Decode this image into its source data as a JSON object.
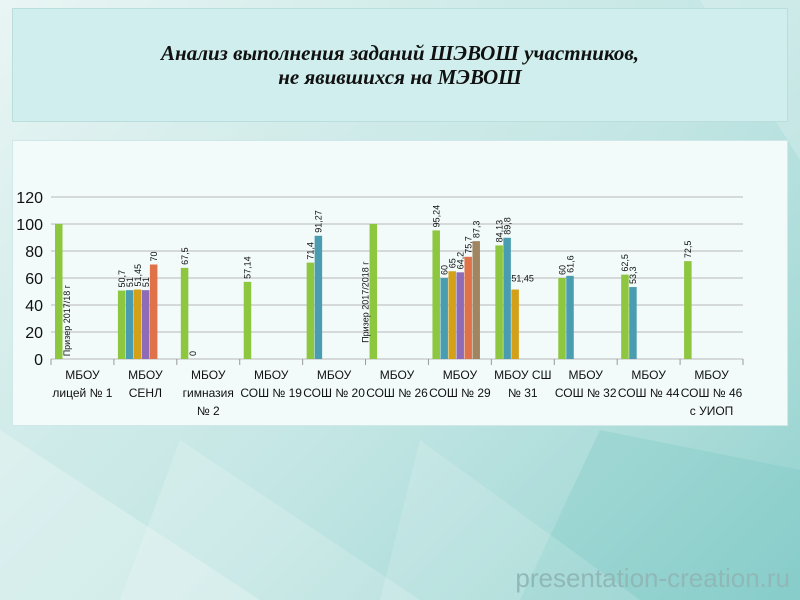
{
  "title": {
    "line1": "Анализ выполнения заданий ШЭВОШ участников,",
    "line2": "не явившихся на МЭВОШ"
  },
  "watermark": "presentation-creation.ru",
  "colors": {
    "s1": "#8dc63f",
    "s2": "#4a9db0",
    "s3": "#d4a017",
    "s4": "#8e6bb6",
    "s5": "#e0724a",
    "s6": "#a08560",
    "grid": "#b8b8b8",
    "axis": "#999999"
  },
  "chart_data": {
    "type": "bar",
    "ylim": [
      0,
      120
    ],
    "yticks": [
      0,
      20,
      40,
      60,
      80,
      100,
      120
    ],
    "grid": true,
    "categories": [
      [
        "МБОУ",
        "лицей № 1"
      ],
      [
        "МБОУ",
        "СЕНЛ"
      ],
      [
        "МБОУ",
        "гимназия",
        "№ 2"
      ],
      [
        "МБОУ",
        "СОШ № 19"
      ],
      [
        "МБОУ",
        "СОШ № 20"
      ],
      [
        "МБОУ",
        "СОШ № 26"
      ],
      [
        "МБОУ",
        "СОШ № 29"
      ],
      [
        "МБОУ СШ",
        "№ 31"
      ],
      [
        "МБОУ",
        "СОШ № 32"
      ],
      [
        "МБОУ",
        "СОШ № 44"
      ],
      [
        "МБОУ",
        "СОШ № 46",
        "с УИОП"
      ]
    ],
    "groups": [
      {
        "bars": [
          {
            "v": 100,
            "label": "",
            "c": "s1"
          }
        ],
        "notes": [
          {
            "text": "Призер 2017/18 г",
            "slot": 1,
            "y": 2
          }
        ]
      },
      {
        "bars": [
          {
            "v": 50.7,
            "label": "50,7",
            "c": "s1"
          },
          {
            "v": 51,
            "label": "51",
            "c": "s2"
          },
          {
            "v": 51.45,
            "label": "51,45",
            "c": "s3"
          },
          {
            "v": 51,
            "label": "51",
            "c": "s4"
          },
          {
            "v": 70,
            "label": "70",
            "c": "s5"
          }
        ],
        "notes": []
      },
      {
        "bars": [
          {
            "v": 67.5,
            "label": "67,5",
            "c": "s1"
          },
          {
            "v": 0,
            "label": "0",
            "c": "s2"
          }
        ],
        "notes": []
      },
      {
        "bars": [
          {
            "v": 57.14,
            "label": "57,14",
            "c": "s1"
          }
        ],
        "notes": []
      },
      {
        "bars": [
          {
            "v": 71.4,
            "label": "71,4",
            "c": "s1"
          },
          {
            "v": 91.27,
            "label": "91,27",
            "c": "s2"
          }
        ],
        "notes": []
      },
      {
        "bars": [
          {
            "v": 100,
            "label": "",
            "c": "s1"
          }
        ],
        "notes": [
          {
            "text": "Призер 2017/2018 г",
            "slot": -1,
            "y": 12
          }
        ]
      },
      {
        "bars": [
          {
            "v": 95.24,
            "label": "95,24",
            "c": "s1"
          },
          {
            "v": 60,
            "label": "60",
            "c": "s2"
          },
          {
            "v": 65,
            "label": "65",
            "c": "s3"
          },
          {
            "v": 64.2,
            "label": "64,2",
            "c": "s4"
          },
          {
            "v": 75.7,
            "label": "75,7",
            "c": "s5"
          },
          {
            "v": 87.3,
            "label": "87,3",
            "c": "s6"
          }
        ],
        "notes": []
      },
      {
        "bars": [
          {
            "v": 84.13,
            "label": "84,13",
            "c": "s1"
          },
          {
            "v": 89.8,
            "label": "89,8",
            "c": "s2"
          },
          {
            "v": 51.45,
            "label": "51,45",
            "c": "s3",
            "horizontal": true
          }
        ],
        "notes": []
      },
      {
        "bars": [
          {
            "v": 60,
            "label": "60",
            "c": "s1"
          },
          {
            "v": 61.6,
            "label": "61,6",
            "c": "s2"
          }
        ],
        "notes": []
      },
      {
        "bars": [
          {
            "v": 62.5,
            "label": "62,5",
            "c": "s1"
          },
          {
            "v": 53.3,
            "label": "53,3",
            "c": "s2"
          }
        ],
        "notes": []
      },
      {
        "bars": [
          {
            "v": 72.5,
            "label": "72,5",
            "c": "s1"
          }
        ],
        "notes": []
      }
    ]
  }
}
